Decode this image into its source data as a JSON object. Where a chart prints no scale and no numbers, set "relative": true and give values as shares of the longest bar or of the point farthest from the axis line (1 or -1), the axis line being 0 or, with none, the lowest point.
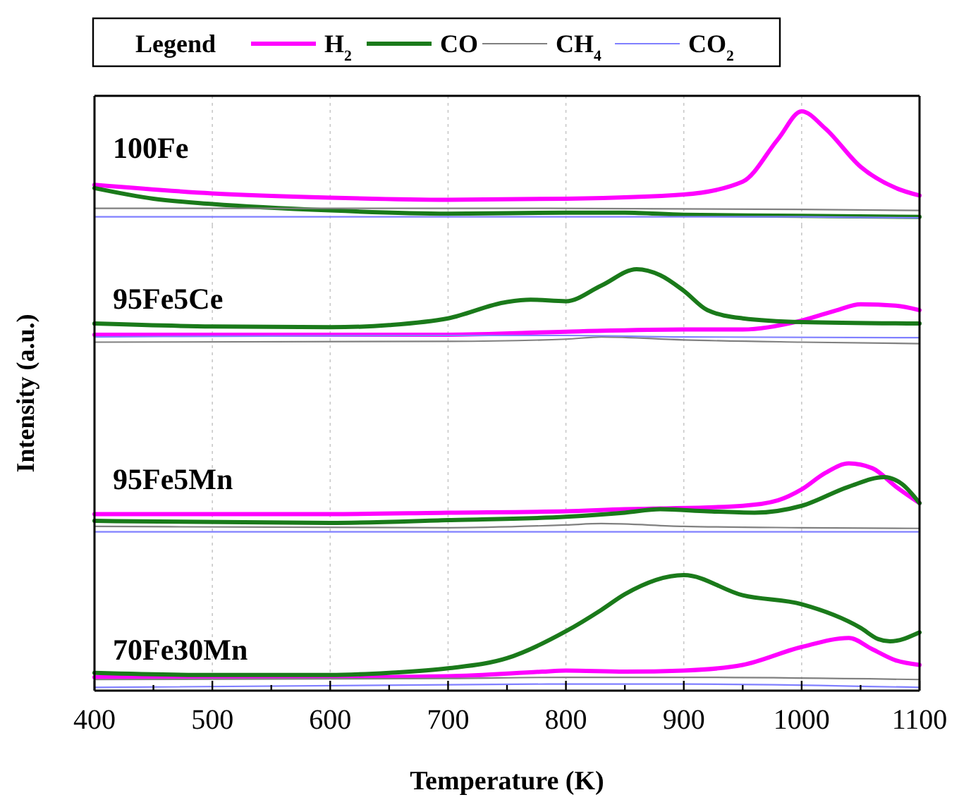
{
  "chart_data": [
    {
      "type": "line",
      "title": "100Fe",
      "ylabel": "Intensity (a.u.)",
      "relative": true,
      "legend": "top",
      "legend_title": "Legend",
      "grid": "x",
      "tick_labels": false,
      "xlim": [
        400,
        1100
      ],
      "xticks": [
        400,
        500,
        600,
        700,
        800,
        900,
        1000,
        1100
      ],
      "series": [
        {
          "name": "H$_{2}$",
          "color": "#ff00ff",
          "x": [
            400,
            500,
            600,
            700,
            800,
            900,
            950,
            980,
            1000,
            1020,
            1050,
            1080,
            1100
          ],
          "values": [
            0.31,
            0.23,
            0.19,
            0.17,
            0.18,
            0.22,
            0.34,
            0.74,
            1.0,
            0.84,
            0.48,
            0.28,
            0.21
          ]
        },
        {
          "name": "CO",
          "color": "#1a7a1a",
          "x": [
            400,
            450,
            500,
            600,
            700,
            800,
            850,
            900,
            1000,
            1100
          ],
          "values": [
            0.28,
            0.18,
            0.13,
            0.07,
            0.04,
            0.05,
            0.05,
            0.03,
            0.02,
            0.01
          ]
        },
        {
          "name": "CH$_{4}$",
          "color": "#808080",
          "x": [
            400,
            700,
            1000,
            1100
          ],
          "values": [
            0.09,
            0.09,
            0.08,
            0.07
          ]
        },
        {
          "name": "CO$_{2}$",
          "color": "#8080ff",
          "x": [
            400,
            700,
            1000,
            1100
          ],
          "values": [
            0.01,
            0.01,
            0.01,
            0.0
          ]
        }
      ]
    },
    {
      "type": "line",
      "title": "95Fe5Ce",
      "relative": true,
      "grid": "x",
      "tick_labels": false,
      "xlim": [
        400,
        1100
      ],
      "xticks": [
        400,
        500,
        600,
        700,
        800,
        900,
        1000,
        1100
      ],
      "series": [
        {
          "color": "#ff00ff",
          "x": [
            400,
            600,
            700,
            800,
            900,
            950,
            1000,
            1030,
            1050,
            1080,
            1100
          ],
          "values": [
            0.12,
            0.12,
            0.12,
            0.16,
            0.19,
            0.19,
            0.31,
            0.45,
            0.53,
            0.51,
            0.45
          ]
        },
        {
          "color": "#1a7a1a",
          "x": [
            400,
            500,
            600,
            650,
            700,
            750,
            770,
            800,
            830,
            860,
            880,
            900,
            920,
            950,
            1000,
            1100
          ],
          "values": [
            0.27,
            0.23,
            0.22,
            0.25,
            0.34,
            0.56,
            0.59,
            0.57,
            0.78,
            1.0,
            0.92,
            0.71,
            0.45,
            0.34,
            0.29,
            0.27
          ]
        },
        {
          "color": "#808080",
          "x": [
            400,
            700,
            800,
            830,
            900,
            1000,
            1100
          ],
          "values": [
            0.02,
            0.03,
            0.06,
            0.09,
            0.05,
            0.02,
            0.0
          ]
        },
        {
          "color": "#8080ff",
          "x": [
            400,
            700,
            800,
            900,
            1100
          ],
          "values": [
            0.09,
            0.11,
            0.11,
            0.09,
            0.08
          ]
        }
      ]
    },
    {
      "type": "line",
      "title": "95Fe5Mn",
      "relative": true,
      "grid": "x",
      "tick_labels": false,
      "xlim": [
        400,
        1100
      ],
      "xticks": [
        400,
        500,
        600,
        700,
        800,
        900,
        1000,
        1100
      ],
      "series": [
        {
          "color": "#ff00ff",
          "x": [
            400,
            600,
            700,
            800,
            850,
            880,
            950,
            980,
            1000,
            1020,
            1040,
            1060,
            1080,
            1100
          ],
          "values": [
            0.26,
            0.26,
            0.28,
            0.3,
            0.33,
            0.34,
            0.38,
            0.46,
            0.62,
            0.86,
            1.0,
            0.93,
            0.66,
            0.42
          ]
        },
        {
          "color": "#1a7a1a",
          "x": [
            400,
            600,
            700,
            800,
            850,
            880,
            920,
            960,
            1000,
            1040,
            1070,
            1085,
            1100
          ],
          "values": [
            0.16,
            0.13,
            0.17,
            0.22,
            0.28,
            0.33,
            0.3,
            0.28,
            0.38,
            0.66,
            0.8,
            0.7,
            0.42
          ]
        },
        {
          "color": "#808080",
          "x": [
            400,
            700,
            800,
            830,
            900,
            1000,
            1100
          ],
          "values": [
            0.08,
            0.06,
            0.1,
            0.12,
            0.08,
            0.06,
            0.05
          ]
        },
        {
          "color": "#8080ff",
          "x": [
            400,
            1100
          ],
          "values": [
            0.0,
            0.0
          ]
        }
      ]
    },
    {
      "type": "line",
      "title": "70Fe30Mn",
      "xlabel": "Temperature (K)",
      "relative": true,
      "grid": "x",
      "tick_labels": "x",
      "xlim": [
        400,
        1100
      ],
      "xticks": [
        400,
        {
          "value": 450,
          "label": null
        },
        500,
        {
          "value": 550,
          "label": null
        },
        600,
        {
          "value": 650,
          "label": null
        },
        700,
        {
          "value": 750,
          "label": null
        },
        800,
        {
          "value": 850,
          "label": null
        },
        900,
        {
          "value": 950,
          "label": null
        },
        1000,
        {
          "value": 1050,
          "label": null
        },
        1100
      ],
      "series": [
        {
          "color": "#ff00ff",
          "x": [
            400,
            600,
            700,
            780,
            800,
            850,
            900,
            950,
            1000,
            1040,
            1060,
            1080,
            1100
          ],
          "values": [
            0.09,
            0.09,
            0.1,
            0.14,
            0.15,
            0.14,
            0.15,
            0.2,
            0.36,
            0.44,
            0.34,
            0.24,
            0.2
          ]
        },
        {
          "color": "#1a7a1a",
          "x": [
            400,
            500,
            600,
            650,
            700,
            750,
            800,
            830,
            850,
            900,
            950,
            1000,
            1050,
            1065,
            1075,
            1100
          ],
          "values": [
            0.13,
            0.11,
            0.11,
            0.13,
            0.17,
            0.26,
            0.5,
            0.69,
            0.83,
            1.0,
            0.82,
            0.74,
            0.53,
            0.43,
            0.41,
            0.49
          ]
        },
        {
          "color": "#808080",
          "x": [
            400,
            700,
            800,
            900,
            1100
          ],
          "values": [
            0.07,
            0.08,
            0.09,
            0.09,
            0.07
          ]
        },
        {
          "color": "#8080ff",
          "x": [
            400,
            800,
            900,
            1100
          ],
          "values": [
            0.0,
            0.03,
            0.03,
            0.0
          ]
        }
      ]
    }
  ]
}
